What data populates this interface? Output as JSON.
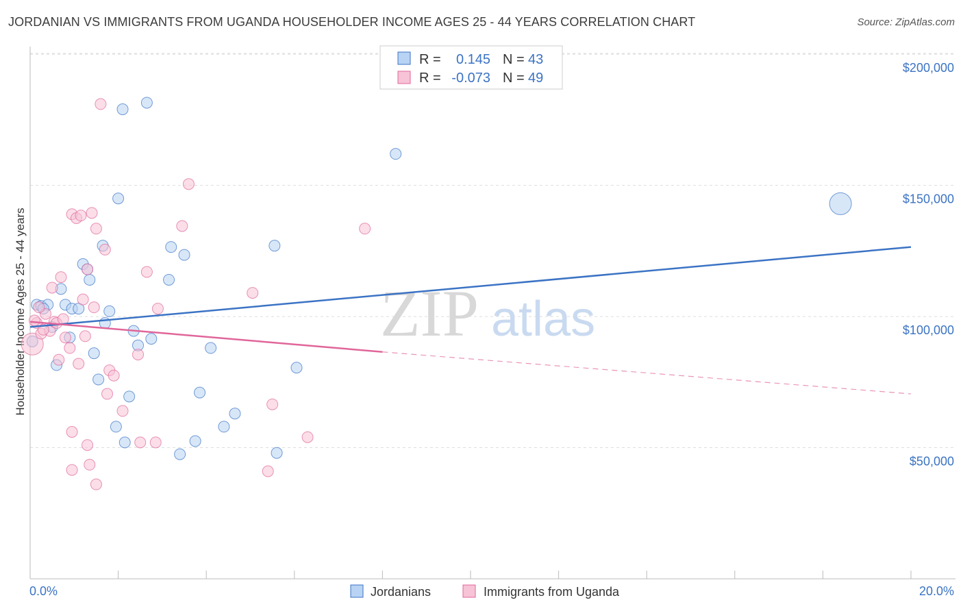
{
  "title": "JORDANIAN VS IMMIGRANTS FROM UGANDA HOUSEHOLDER INCOME AGES 25 - 44 YEARS CORRELATION CHART",
  "source": "Source: ZipAtlas.com",
  "watermark": {
    "part1": "ZIP",
    "part2": "atlas"
  },
  "colors": {
    "blue": "#3b73c4",
    "blue_fill": "#b8d3f3",
    "pink": "#e0669a",
    "pink_fill": "#f7c3d6",
    "grid": "#dddddd",
    "axis": "#999999"
  },
  "chart_data": {
    "type": "scatter",
    "title": "JORDANIAN VS IMMIGRANTS FROM UGANDA HOUSEHOLDER INCOME AGES 25 - 44 YEARS CORRELATION CHART",
    "ylabel": "Householder Income Ages 25 - 44 years",
    "xlabel": "",
    "xlim": [
      0,
      20
    ],
    "ylim": [
      0,
      205000
    ],
    "x_tick_labels": {
      "min": "0.0%",
      "max": "20.0%"
    },
    "y_ticks": [
      {
        "value": 50000,
        "label": "$50,000"
      },
      {
        "value": 100000,
        "label": "$100,000"
      },
      {
        "value": 150000,
        "label": "$150,000"
      },
      {
        "value": 200000,
        "label": "$200,000"
      }
    ],
    "grid": true,
    "legend_position": "top-center",
    "stats": [
      {
        "r_label": "R =",
        "r": "0.145",
        "n_label": "N =",
        "n": "43"
      },
      {
        "r_label": "R =",
        "r": "-0.073",
        "n_label": "N =",
        "n": "49"
      }
    ],
    "series": [
      {
        "name": "Jordanians",
        "color": "#3b73c4",
        "trend": {
          "x0": 0.0,
          "y0": 96000,
          "x1": 20.0,
          "y1": 126500
        },
        "points": [
          [
            0.15,
            104500
          ],
          [
            0.25,
            104000
          ],
          [
            0.4,
            104500
          ],
          [
            0.3,
            103000
          ],
          [
            0.5,
            96000
          ],
          [
            0.7,
            110500
          ],
          [
            0.8,
            104500
          ],
          [
            0.9,
            92000
          ],
          [
            0.95,
            103000
          ],
          [
            1.1,
            103000
          ],
          [
            1.2,
            120000
          ],
          [
            1.3,
            118000
          ],
          [
            1.35,
            114000
          ],
          [
            1.45,
            86000
          ],
          [
            1.55,
            76000
          ],
          [
            1.65,
            127000
          ],
          [
            1.7,
            97500
          ],
          [
            1.8,
            102000
          ],
          [
            1.95,
            58000
          ],
          [
            2.0,
            145000
          ],
          [
            2.1,
            179000
          ],
          [
            2.15,
            52000
          ],
          [
            2.25,
            69500
          ],
          [
            2.35,
            94500
          ],
          [
            2.45,
            89000
          ],
          [
            2.65,
            181500
          ],
          [
            2.75,
            91500
          ],
          [
            3.15,
            114000
          ],
          [
            3.2,
            126500
          ],
          [
            3.4,
            47500
          ],
          [
            3.5,
            123500
          ],
          [
            3.75,
            52500
          ],
          [
            3.85,
            71000
          ],
          [
            4.1,
            88000
          ],
          [
            4.4,
            58000
          ],
          [
            4.65,
            63000
          ],
          [
            5.55,
            127000
          ],
          [
            5.6,
            48000
          ],
          [
            6.05,
            80500
          ],
          [
            8.3,
            162000
          ],
          [
            18.4,
            143000
          ],
          [
            0.05,
            90500
          ],
          [
            0.6,
            81500
          ]
        ]
      },
      {
        "name": "Immigrants from Uganda",
        "color": "#e0669a",
        "trend": {
          "x0": 0.0,
          "y0": 98000,
          "x1": 8.0,
          "y1": 86500,
          "dash_to_x": 20.0,
          "dash_to_y": 70500
        },
        "points": [
          [
            0.05,
            89500
          ],
          [
            0.15,
            97500
          ],
          [
            0.25,
            93500
          ],
          [
            0.35,
            101000
          ],
          [
            0.45,
            94500
          ],
          [
            0.5,
            111000
          ],
          [
            0.55,
            98000
          ],
          [
            0.6,
            97500
          ],
          [
            0.65,
            83500
          ],
          [
            0.7,
            115000
          ],
          [
            0.75,
            99000
          ],
          [
            0.8,
            92000
          ],
          [
            0.9,
            88000
          ],
          [
            0.95,
            139000
          ],
          [
            0.95,
            56000
          ],
          [
            0.95,
            41500
          ],
          [
            1.05,
            137500
          ],
          [
            1.15,
            138500
          ],
          [
            1.1,
            82000
          ],
          [
            1.2,
            106500
          ],
          [
            1.25,
            92500
          ],
          [
            1.3,
            118000
          ],
          [
            1.3,
            51000
          ],
          [
            1.35,
            43500
          ],
          [
            1.4,
            139500
          ],
          [
            1.45,
            103500
          ],
          [
            1.5,
            133500
          ],
          [
            1.5,
            36000
          ],
          [
            1.6,
            181000
          ],
          [
            1.7,
            125500
          ],
          [
            1.75,
            70500
          ],
          [
            1.8,
            79500
          ],
          [
            1.9,
            77500
          ],
          [
            2.1,
            64000
          ],
          [
            2.45,
            85500
          ],
          [
            2.5,
            52000
          ],
          [
            2.65,
            117000
          ],
          [
            2.85,
            52000
          ],
          [
            2.9,
            103000
          ],
          [
            3.45,
            134500
          ],
          [
            3.6,
            150500
          ],
          [
            5.05,
            109000
          ],
          [
            5.4,
            41000
          ],
          [
            5.5,
            66500
          ],
          [
            6.3,
            54000
          ],
          [
            7.6,
            133500
          ],
          [
            0.1,
            98500
          ],
          [
            0.2,
            103500
          ],
          [
            0.3,
            95000
          ]
        ]
      }
    ]
  }
}
